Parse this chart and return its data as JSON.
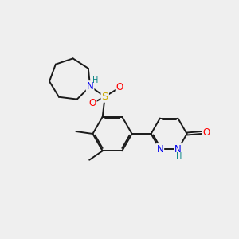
{
  "bg_color": "#efefef",
  "bond_color": "#1a1a1a",
  "bond_width": 1.4,
  "dbo": 0.055,
  "atom_colors": {
    "C": "#1a1a1a",
    "N": "#0000ee",
    "O": "#ff0000",
    "S": "#ccaa00",
    "H": "#008080"
  },
  "fs": 8.5,
  "sfs": 7.0
}
